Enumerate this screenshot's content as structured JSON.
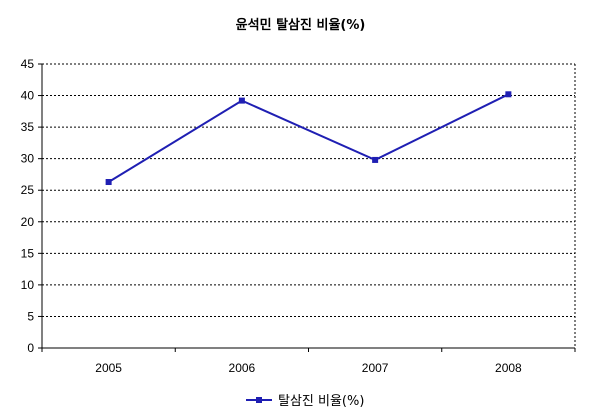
{
  "chart_data": {
    "type": "line",
    "title": "윤석민 탈삼진 비율(%)",
    "xlabel": "",
    "ylabel": "",
    "categories": [
      "2005",
      "2006",
      "2007",
      "2008"
    ],
    "series": [
      {
        "name": "탈삼진 비율(%)",
        "values": [
          26.3,
          39.2,
          29.8,
          40.2
        ],
        "color": "#1f1fb3"
      }
    ],
    "ylim": [
      0,
      45
    ],
    "yticks": [
      "0",
      "5",
      "10",
      "15",
      "20",
      "25",
      "30",
      "35",
      "40",
      "45"
    ],
    "grid": "dashed horizontal",
    "legend": "bottom"
  }
}
